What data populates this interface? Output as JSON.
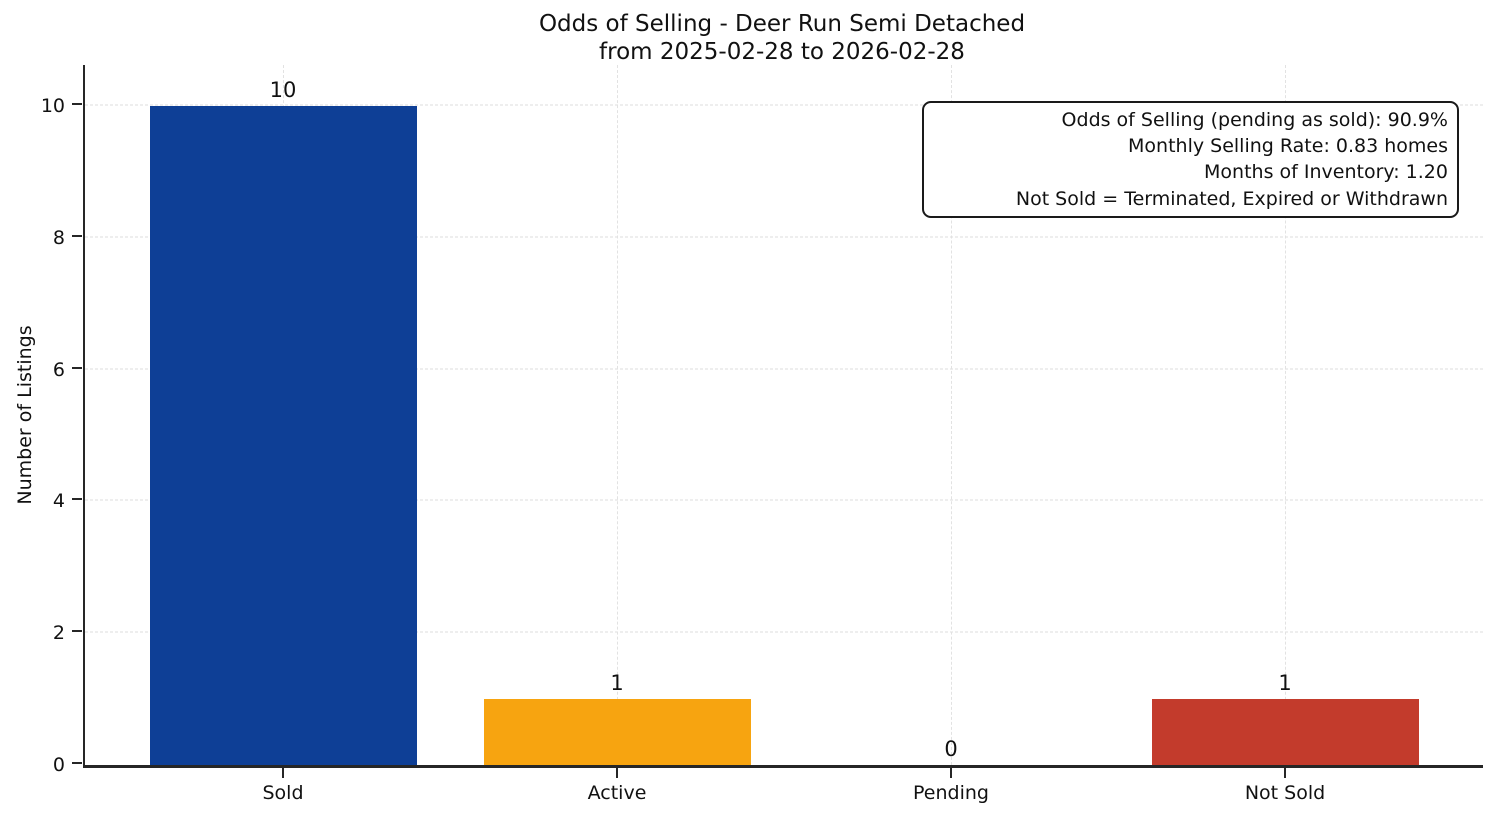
{
  "figure": {
    "title_line1": "Odds of Selling - Deer Run Semi Detached",
    "title_line2": "from 2025-02-28 to 2026-02-28"
  },
  "annotation": {
    "lines": [
      "Odds of Selling (pending as sold): 90.9%",
      "Monthly Selling Rate: 0.83 homes",
      "Months of Inventory: 1.20",
      "Not Sold = Terminated, Expired or Withdrawn"
    ],
    "position": "upper-right"
  },
  "chart_data": {
    "type": "bar",
    "title": "Odds of Selling - Deer Run Semi Detached",
    "subtitle": "from 2025-02-28 to 2026-02-28",
    "categories": [
      "Sold",
      "Active",
      "Pending",
      "Not Sold"
    ],
    "values": [
      10,
      1,
      0,
      1
    ],
    "value_labels": [
      "10",
      "1",
      "0",
      "1"
    ],
    "bar_colors": [
      "#0e3f96",
      "#f7a410",
      null,
      "#c33b2c"
    ],
    "xlabel": "",
    "ylabel": "Number of Listings",
    "yticks": [
      0,
      2,
      4,
      6,
      8,
      10
    ],
    "ylim": [
      0,
      10.62
    ],
    "grid": "dashed, horizontal and vertical",
    "legend": "none",
    "annotation_lines": [
      "Odds of Selling (pending as sold): 90.9%",
      "Monthly Selling Rate: 0.83 homes",
      "Months of Inventory: 1.20",
      "Not Sold = Terminated, Expired or Withdrawn"
    ]
  },
  "colors": {
    "sold_bar": "#0e3f96",
    "active_bar": "#f7a410",
    "not_sold_bar": "#c33b2c",
    "spine": "#262626",
    "grid": "#dcdcdc",
    "text": "#111111"
  }
}
